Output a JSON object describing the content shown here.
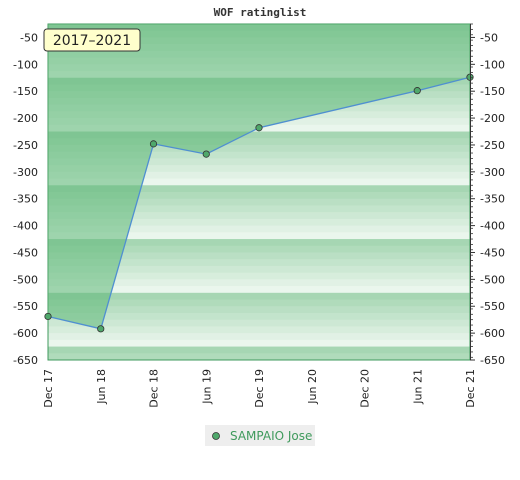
{
  "chart_data": {
    "type": "area",
    "title": "WOF ratinglist",
    "badge": "2017–2021",
    "xlabel": "",
    "ylabel": "",
    "x_ticks": [
      "Dec 17",
      "Jun 18",
      "Dec 18",
      "Jun 19",
      "Dec 19",
      "Jun 20",
      "Dec 20",
      "Jun 21",
      "Dec 21"
    ],
    "y_ticks": [
      -50,
      -100,
      -150,
      -200,
      -250,
      -300,
      -350,
      -400,
      -450,
      -500,
      -550,
      -600,
      -650
    ],
    "ylim": [
      -650,
      -25
    ],
    "grid": false,
    "legend_position": "bottom-center",
    "series": [
      {
        "name": "SAMPAIO Jose",
        "x": [
          "Dec 17",
          "Jun 18",
          "Dec 18",
          "Jun 19",
          "Dec 19",
          "Jun 21",
          "Dec 21"
        ],
        "values": [
          -569,
          -592,
          -248,
          -267,
          -218,
          -149,
          -124
        ],
        "color": "#4f8fd1",
        "marker_color": "#4fa86b"
      }
    ]
  },
  "colors": {
    "band_dark": "#a6d6b3",
    "band_light": "#f4faf5",
    "area_fill": "#5fb878",
    "plot_border": "#3f9a5c",
    "badge_bg": "#ffffcc",
    "legend_bg": "#eeeeee",
    "legend_text": "#3f9a5c"
  }
}
